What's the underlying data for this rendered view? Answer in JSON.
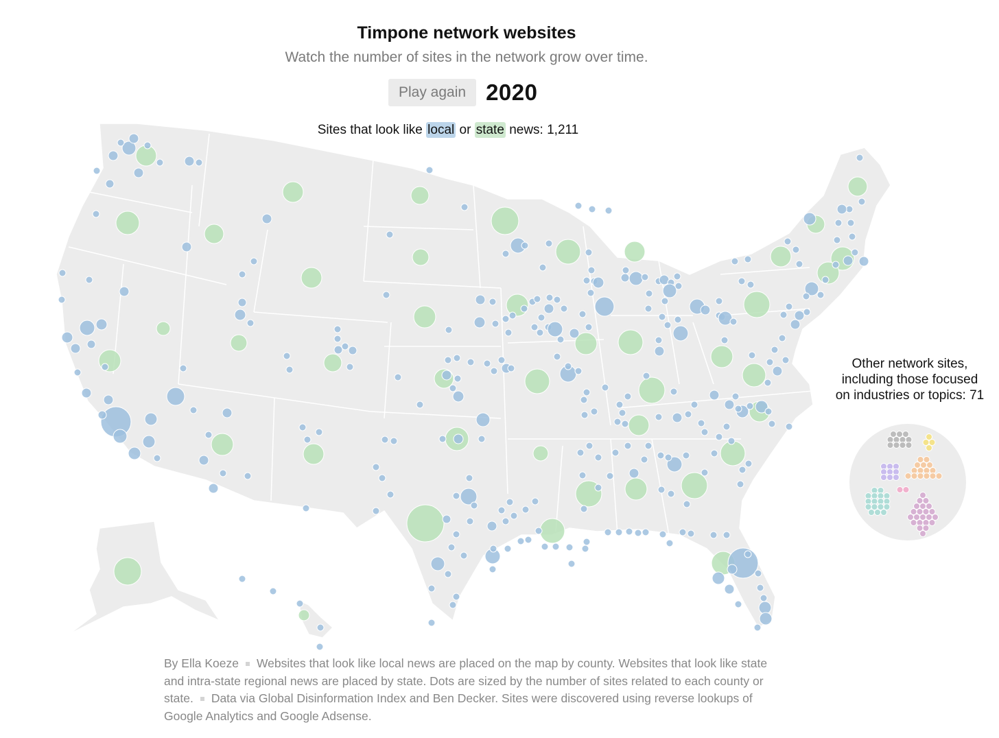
{
  "header": {
    "title": "Timpone network websites",
    "subtitle": "Watch the number of sites in the network grow over time."
  },
  "controls": {
    "play_label": "Play again",
    "year": "2020"
  },
  "legend": {
    "prefix": "Sites that look like",
    "local_label": "local",
    "connector": "or",
    "state_label": "state",
    "suffix": "news: 1,211"
  },
  "other_sites": {
    "line1": "Other network sites,",
    "line2": "including those focused",
    "line3": "on industries or topics: 71"
  },
  "colors": {
    "local": "#9dc0de",
    "state": "#b8e2b8",
    "land": "#ececec",
    "borders": "#ffffff",
    "other_groups": [
      "#b4b4b4",
      "#f6e27a",
      "#c3b4ee",
      "#f7c698",
      "#f2a7c8",
      "#a5dbd3",
      "#d4a7cf"
    ]
  },
  "footnote": {
    "byline": "By Ella Koeze",
    "note1": "Websites that look like local news are placed on the map by county. Websites that look like state and intra-state regional news are placed by state. Dots are sized by the number of sites related to each county or state.",
    "note2": "Data via Global Disinformation Index and Ben Decker. Sites were discovered using reverse lookups of Google Analytics and Google Adsense."
  }
}
